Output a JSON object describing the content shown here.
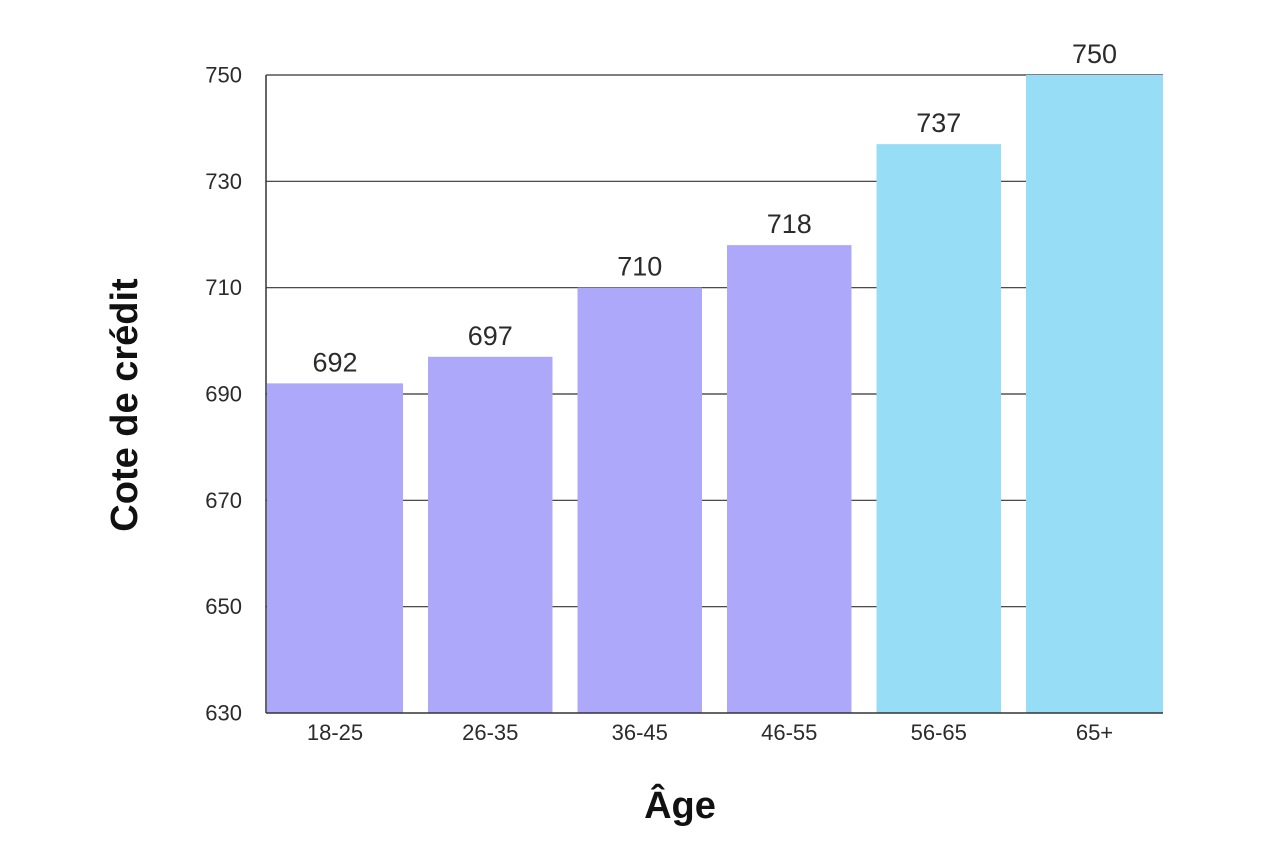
{
  "chart_data": {
    "type": "bar",
    "title": "",
    "xlabel": "Âge",
    "ylabel": "Cote de crédit",
    "categories": [
      "18-25",
      "26-35",
      "36-45",
      "46-55",
      "56-65",
      "65+"
    ],
    "values": [
      692,
      697,
      710,
      718,
      737,
      750
    ],
    "data_labels": [
      "692",
      "697",
      "710",
      "718",
      "737",
      "750"
    ],
    "ylim": [
      630,
      750
    ],
    "yticks": [
      630,
      650,
      670,
      690,
      710,
      730,
      750
    ],
    "ytick_labels": [
      "630",
      "650",
      "670",
      "690",
      "710",
      "730",
      "750"
    ],
    "grid": true,
    "legend": "none",
    "colors": {
      "bar_purple": "#ADA8FA",
      "bar_blue": "#96DDF5",
      "axis": "#333333",
      "grid": "#333333"
    },
    "bar_colors": [
      "#ADA8FA",
      "#ADA8FA",
      "#ADA8FA",
      "#ADA8FA",
      "#96DDF5",
      "#96DDF5"
    ]
  }
}
